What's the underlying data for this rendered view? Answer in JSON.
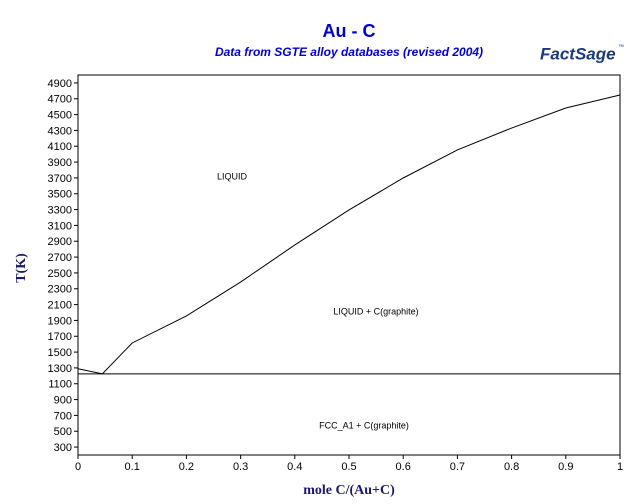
{
  "chart_data": {
    "type": "line",
    "title": "Au - C",
    "subtitle": "Data from SGTE alloy databases (revised 2004)",
    "logo": "FactSage",
    "logo_mark": "™",
    "x_label": "mole C/(Au+C)",
    "y_label": "T(K)",
    "annotations": [
      "LIQUID",
      "LIQUID + C(graphite)",
      "FCC_A1 + C(graphite)"
    ],
    "xlim": [
      0,
      1
    ],
    "xticks": [
      0,
      0.1,
      0.2,
      0.3,
      0.4,
      0.5,
      0.6,
      0.7,
      0.8,
      0.9,
      1
    ],
    "ylim": [
      200,
      5000
    ],
    "yticks": [
      300,
      500,
      700,
      900,
      1100,
      1300,
      1500,
      1700,
      1900,
      2100,
      2300,
      2500,
      2700,
      2900,
      3100,
      3300,
      3500,
      3700,
      3900,
      4100,
      4300,
      4500,
      4700,
      4900
    ],
    "series": [
      {
        "color": "#000000",
        "x": [
          0,
          0.045,
          0.1,
          0.2,
          0.3,
          0.4,
          0.5,
          0.6,
          0.7,
          0.8,
          0.9,
          1
        ],
        "values": [
          1290,
          1225,
          1615,
          1956,
          2385,
          2853,
          3295,
          3699,
          4053,
          4330,
          4583,
          4747
        ]
      },
      {
        "color": "#000000",
        "x": [
          0,
          1
        ],
        "values": [
          1225,
          1225
        ]
      }
    ]
  }
}
